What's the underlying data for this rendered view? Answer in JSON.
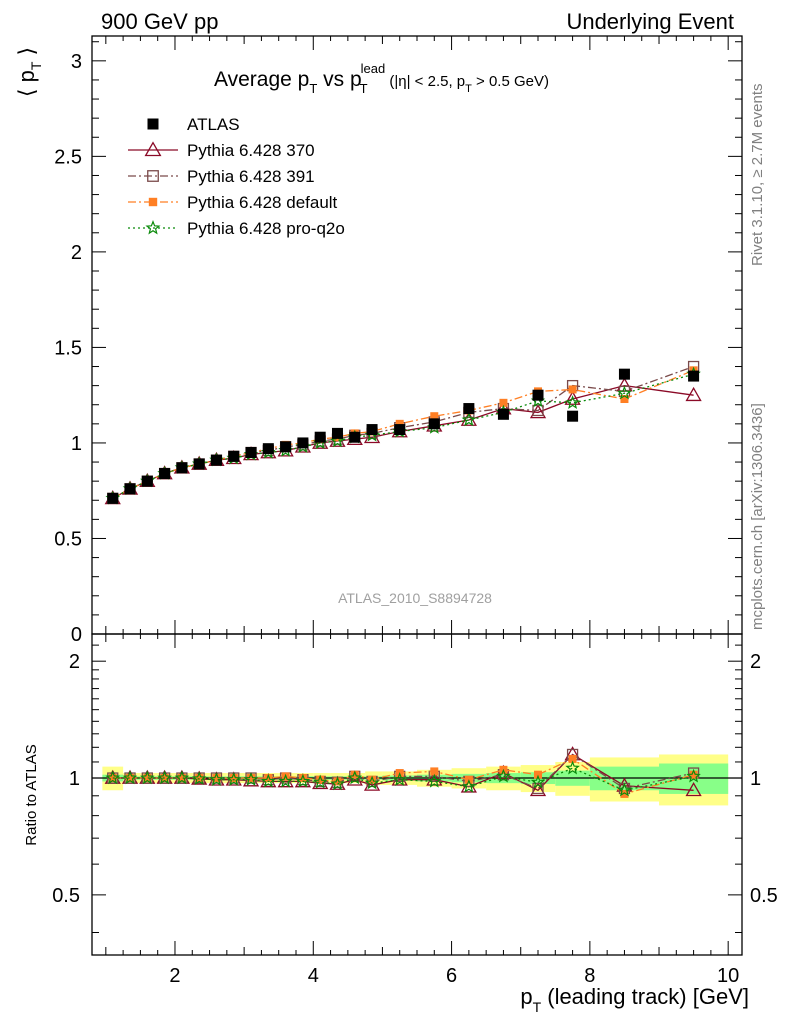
{
  "header": {
    "left": "900 GeV pp",
    "right": "Underlying Event"
  },
  "side": {
    "rivet": "Rivet 3.1.10, ≥ 2.7M events",
    "mcplots": "mcplots.cern.ch [arXiv:1306.3436]"
  },
  "analysis_label": "ATLAS_2010_S8894728",
  "colors": {
    "atlas": "#000000",
    "p370": "#8b0a27",
    "p391": "#7a4a4a",
    "default": "#ff7f24",
    "proq2o": "#0a8a0a",
    "band_outer": "#ffff88",
    "band_inner": "#88ff88"
  },
  "chart_data": [
    {
      "type": "line",
      "title": {
        "main": "Average p",
        "t1": "T",
        "mid": " vs p",
        "t2": "T",
        "lead": "lead",
        "cut1": " (|η| < 2.5, p",
        "t3": "T",
        "cut2": " > 0.5 GeV)"
      },
      "ylabel": {
        "l": "⟨ p",
        "t": "T",
        "r": " ⟩"
      },
      "xlim": [
        0.8,
        10.2
      ],
      "ylim": [
        0,
        3.13
      ],
      "yticks": [
        0,
        0.5,
        1,
        1.5,
        2,
        2.5,
        3
      ],
      "ytick_labels": [
        "0",
        "0.5",
        "1",
        "1.5",
        "2",
        "2.5",
        "3"
      ],
      "x": [
        1.1,
        1.35,
        1.6,
        1.85,
        2.1,
        2.35,
        2.6,
        2.85,
        3.1,
        3.35,
        3.6,
        3.85,
        4.1,
        4.35,
        4.6,
        4.85,
        5.25,
        5.75,
        6.25,
        6.75,
        7.25,
        7.75,
        8.5,
        9.5
      ],
      "series": [
        {
          "name": "ATLAS",
          "key": "atlas",
          "marker": "square",
          "values": [
            0.71,
            0.76,
            0.8,
            0.84,
            0.87,
            0.89,
            0.91,
            0.93,
            0.95,
            0.97,
            0.98,
            1.0,
            1.03,
            1.05,
            1.03,
            1.07,
            1.07,
            1.1,
            1.18,
            1.15,
            1.25,
            1.14,
            1.36,
            1.35
          ]
        },
        {
          "name": "Pythia 6.428 370",
          "key": "p370",
          "marker": "triangle",
          "dash": "",
          "values": [
            0.71,
            0.76,
            0.8,
            0.84,
            0.87,
            0.89,
            0.91,
            0.92,
            0.94,
            0.95,
            0.96,
            0.98,
            1.0,
            1.01,
            1.02,
            1.03,
            1.06,
            1.09,
            1.12,
            1.18,
            1.16,
            1.23,
            1.3,
            1.25
          ]
        },
        {
          "name": "Pythia 6.428 391",
          "key": "p391",
          "marker": "opensquare",
          "dash": "8,3,2,3",
          "values": [
            0.71,
            0.76,
            0.8,
            0.84,
            0.87,
            0.89,
            0.91,
            0.93,
            0.95,
            0.96,
            0.98,
            0.99,
            1.01,
            1.02,
            1.04,
            1.05,
            1.08,
            1.11,
            1.16,
            1.18,
            1.17,
            1.3,
            1.27,
            1.4
          ]
        },
        {
          "name": "Pythia 6.428 default",
          "key": "default",
          "marker": "fsquare",
          "dash": "8,3,2,3",
          "values": [
            0.71,
            0.76,
            0.8,
            0.84,
            0.87,
            0.89,
            0.91,
            0.93,
            0.95,
            0.97,
            0.99,
            1.0,
            1.02,
            1.03,
            1.05,
            1.06,
            1.1,
            1.14,
            1.17,
            1.21,
            1.27,
            1.28,
            1.23,
            1.38
          ]
        },
        {
          "name": "Pythia 6.428 pro-q2o",
          "key": "proq2o",
          "marker": "star",
          "dash": "2,3",
          "values": [
            0.71,
            0.76,
            0.8,
            0.84,
            0.87,
            0.89,
            0.91,
            0.92,
            0.94,
            0.95,
            0.96,
            0.98,
            1.0,
            1.01,
            1.03,
            1.04,
            1.06,
            1.08,
            1.12,
            1.16,
            1.22,
            1.21,
            1.26,
            1.36
          ]
        }
      ]
    },
    {
      "type": "line",
      "ylabel": "Ratio to ATLAS",
      "xlabel": {
        "p": "p",
        "t": "T",
        "rest": " (leading track) [GeV]"
      },
      "xlim": [
        0.8,
        10.2
      ],
      "ylim": [
        0.35,
        2.35
      ],
      "yscale": "log",
      "yticks": [
        0.5,
        1,
        2
      ],
      "ytick_labels": [
        "0.5",
        "1",
        "2"
      ],
      "xticks": [
        2,
        4,
        6,
        8,
        10
      ],
      "xtick_labels": [
        "2",
        "4",
        "6",
        "8",
        "10"
      ],
      "x": [
        1.1,
        1.35,
        1.6,
        1.85,
        2.1,
        2.35,
        2.6,
        2.85,
        3.1,
        3.35,
        3.6,
        3.85,
        4.1,
        4.35,
        4.6,
        4.85,
        5.25,
        5.75,
        6.25,
        6.75,
        7.25,
        7.75,
        8.5,
        9.5
      ],
      "bin_edges": [
        0.95,
        1.25,
        1.5,
        1.75,
        2.0,
        2.25,
        2.5,
        2.75,
        3.0,
        3.25,
        3.5,
        3.75,
        4.0,
        4.25,
        4.5,
        4.75,
        5.0,
        5.5,
        6.0,
        6.5,
        7.0,
        7.5,
        8.0,
        9.0,
        10.0
      ],
      "band_outer": [
        0.07,
        0.03,
        0.03,
        0.03,
        0.03,
        0.03,
        0.03,
        0.03,
        0.03,
        0.03,
        0.03,
        0.03,
        0.03,
        0.03,
        0.03,
        0.04,
        0.04,
        0.05,
        0.06,
        0.07,
        0.08,
        0.1,
        0.13,
        0.15
      ],
      "band_inner": [
        0.02,
        0.01,
        0.01,
        0.01,
        0.01,
        0.01,
        0.01,
        0.01,
        0.01,
        0.01,
        0.01,
        0.01,
        0.01,
        0.01,
        0.01,
        0.01,
        0.015,
        0.02,
        0.025,
        0.03,
        0.035,
        0.045,
        0.07,
        0.09
      ],
      "series": [
        {
          "name": "Pythia 6.428 370",
          "key": "p370",
          "marker": "triangle",
          "dash": "",
          "values": [
            1.0,
            1.0,
            1.0,
            1.0,
            1.0,
            0.995,
            0.99,
            0.99,
            0.985,
            0.98,
            0.98,
            0.98,
            0.97,
            0.965,
            0.99,
            0.96,
            0.99,
            0.99,
            0.95,
            1.03,
            0.93,
            1.15,
            0.955,
            0.93
          ]
        },
        {
          "name": "Pythia 6.428 391",
          "key": "p391",
          "marker": "opensquare",
          "dash": "8,3,2,3",
          "values": [
            1.0,
            1.0,
            1.0,
            1.0,
            1.0,
            1.0,
            1.0,
            1.0,
            1.0,
            0.99,
            1.0,
            0.99,
            0.98,
            0.975,
            1.01,
            0.98,
            1.01,
            1.01,
            0.98,
            1.02,
            0.94,
            1.15,
            0.94,
            1.03
          ]
        },
        {
          "name": "Pythia 6.428 default",
          "key": "default",
          "marker": "fsquare",
          "dash": "8,3,2,3",
          "values": [
            1.0,
            1.0,
            1.0,
            1.0,
            1.0,
            1.0,
            1.0,
            1.0,
            1.0,
            1.0,
            1.01,
            1.0,
            0.99,
            0.98,
            1.02,
            0.99,
            1.03,
            1.04,
            0.99,
            1.05,
            1.02,
            1.12,
            0.91,
            1.02
          ]
        },
        {
          "name": "Pythia 6.428 pro-q2o",
          "key": "proq2o",
          "marker": "star",
          "dash": "2,3",
          "values": [
            1.0,
            1.0,
            1.0,
            1.0,
            1.0,
            0.995,
            0.99,
            0.99,
            0.99,
            0.98,
            0.98,
            0.98,
            0.975,
            0.965,
            1.0,
            0.97,
            0.99,
            0.98,
            0.95,
            1.01,
            0.975,
            1.06,
            0.93,
            1.01
          ]
        }
      ]
    }
  ]
}
